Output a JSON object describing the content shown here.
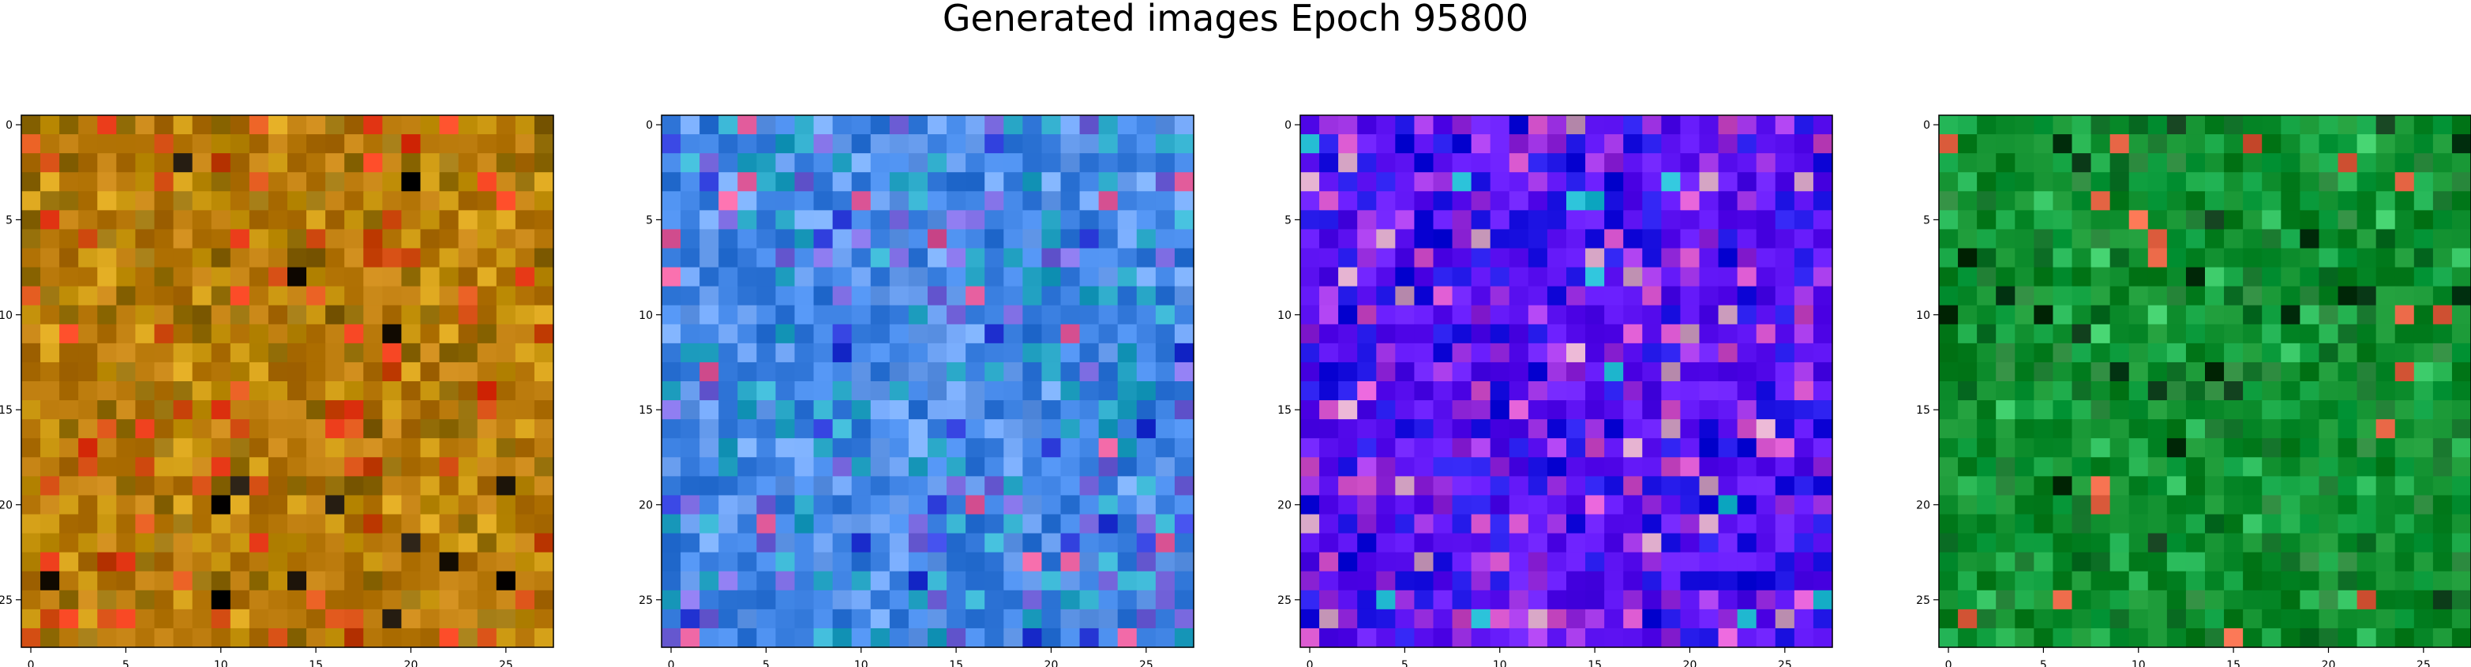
{
  "figure": {
    "title": "Generated images Epoch 95800"
  },
  "chart_data": [
    {
      "type": "heatmap",
      "title": "",
      "xlabel": "",
      "ylabel": "",
      "grid": "off",
      "shape": [
        28,
        28
      ],
      "xlim": [
        -0.5,
        27.5
      ],
      "ylim": [
        27.5,
        -0.5
      ],
      "x_ticks": [
        0,
        5,
        10,
        15,
        20,
        25
      ],
      "y_ticks": [
        0,
        5,
        10,
        15,
        20,
        25
      ],
      "dominant_colors": [
        "#b8780a",
        "#c9960f",
        "#8f6a05",
        "#d04a10",
        "#e83a18",
        "#1a1208"
      ],
      "pixels": "28x28 RGB noise image, orange/ochre tones with red highlights near center"
    },
    {
      "type": "heatmap",
      "title": "",
      "xlabel": "",
      "ylabel": "",
      "grid": "off",
      "shape": [
        28,
        28
      ],
      "xlim": [
        -0.5,
        27.5
      ],
      "ylim": [
        27.5,
        -0.5
      ],
      "x_ticks": [
        0,
        5,
        10,
        15,
        20,
        25
      ],
      "y_ticks": [
        0,
        5,
        10,
        15,
        20,
        25
      ],
      "dominant_colors": [
        "#3a7fe0",
        "#6a9ff0",
        "#2aa8c8",
        "#7a6ae0",
        "#2a3ad8",
        "#e05a9a"
      ],
      "pixels": "28x28 RGB noise image, blue/cyan/violet tones with scattered pink"
    },
    {
      "type": "heatmap",
      "title": "",
      "xlabel": "",
      "ylabel": "",
      "grid": "off",
      "shape": [
        28,
        28
      ],
      "xlim": [
        -0.5,
        27.5
      ],
      "ylim": [
        27.5,
        -0.5
      ],
      "x_ticks": [
        0,
        5,
        10,
        15,
        20,
        25
      ],
      "y_ticks": [
        0,
        5,
        10,
        15,
        20,
        25
      ],
      "dominant_colors": [
        "#5a10f0",
        "#1a10e0",
        "#9a30e0",
        "#d050c8",
        "#d0a0c0",
        "#20b8d0"
      ],
      "pixels": "28x28 RGB noise image, blue/purple center, pink/magenta lower region"
    },
    {
      "type": "heatmap",
      "title": "",
      "xlabel": "",
      "ylabel": "",
      "grid": "off",
      "shape": [
        28,
        28
      ],
      "xlim": [
        -0.5,
        27.5
      ],
      "ylim": [
        27.5,
        -0.5
      ],
      "x_ticks": [
        0,
        5,
        10,
        15,
        20,
        25
      ],
      "y_ticks": [
        0,
        5,
        10,
        15,
        20,
        25
      ],
      "dominant_colors": [
        "#0a8a2a",
        "#10a040",
        "#1a7a30",
        "#30c060",
        "#0a3a18",
        "#e06040"
      ],
      "pixels": "28x28 RGB noise image, green tones with dark bands and an orange spot near center"
    }
  ]
}
